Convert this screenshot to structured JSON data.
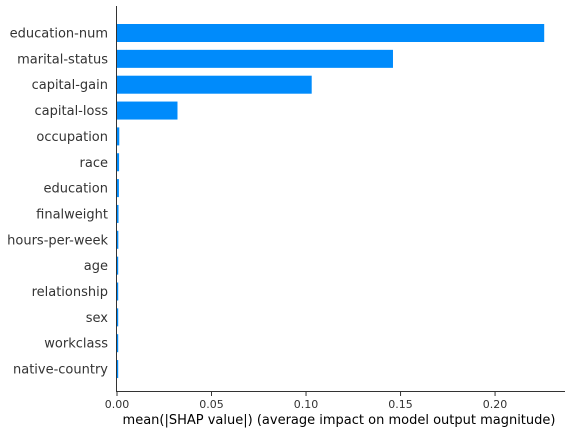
{
  "chart_data": {
    "type": "bar",
    "orientation": "horizontal",
    "categories": [
      "education-num",
      "marital-status",
      "capital-gain",
      "capital-loss",
      "occupation",
      "race",
      "education",
      "finalweight",
      "hours-per-week",
      "age",
      "relationship",
      "sex",
      "workclass",
      "native-country"
    ],
    "values": [
      0.226,
      0.146,
      0.103,
      0.032,
      0.0012,
      0.0011,
      0.001,
      0.0008,
      0.0007,
      0.0006,
      0.0005,
      0.0004,
      0.0003,
      0.0002
    ],
    "xlabel": "mean(|SHAP value|) (average impact on model output magnitude)",
    "ylabel": "",
    "xlim": [
      0,
      0.237
    ],
    "xticks": [
      "0.00",
      "0.05",
      "0.10",
      "0.15",
      "0.20"
    ],
    "grid": false,
    "bar_color": "#008bfb"
  }
}
